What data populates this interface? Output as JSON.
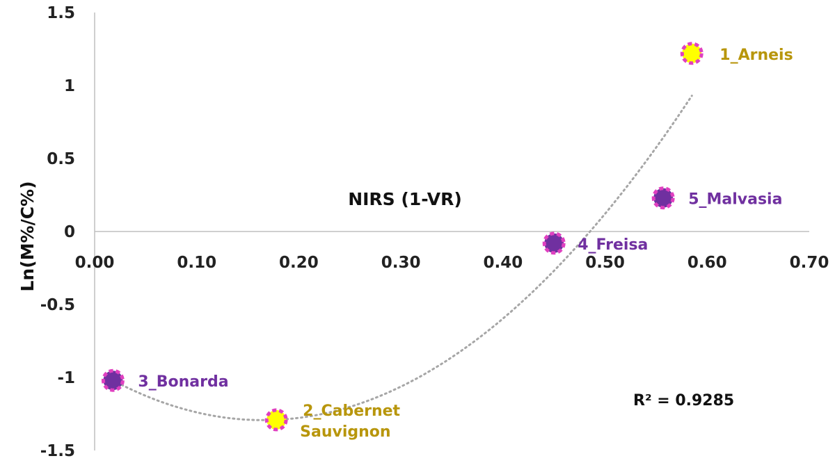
{
  "chart_data": {
    "type": "scatter",
    "xlabel": "NIRS (1-VR)",
    "ylabel": "Ln(M%/C%)",
    "xlim": [
      0,
      0.7
    ],
    "ylim": [
      -1.5,
      1.5
    ],
    "x_ticks": [
      "0.00",
      "0.10",
      "0.20",
      "0.30",
      "0.40",
      "0.50",
      "0.60",
      "0.70"
    ],
    "y_ticks": [
      "1.5",
      "1",
      "0.5",
      "0",
      "-0.5",
      "-1",
      "-1.5"
    ],
    "grid": false,
    "points": [
      {
        "label": "1_Arneis",
        "x": 0.585,
        "y": 1.22,
        "color": "#ffff00"
      },
      {
        "label": "2_Cabernet Sauvignon",
        "label_lines": [
          "2_Cabernet",
          "Sauvignon"
        ],
        "x": 0.178,
        "y": -1.29,
        "color": "#ffff00"
      },
      {
        "label": "3_Bonarda",
        "x": 0.018,
        "y": -1.02,
        "color": "#7030a0"
      },
      {
        "label": "4_Freisa",
        "x": 0.45,
        "y": -0.08,
        "color": "#7030a0"
      },
      {
        "label": "5_Malvasia",
        "x": 0.557,
        "y": 0.23,
        "color": "#7030a0"
      }
    ],
    "trendline": {
      "type": "polynomial",
      "r2_text": "R² = 0.9285",
      "fit": [
        {
          "x": 0.018,
          "y": -1.02
        },
        {
          "x": 0.178,
          "y": -1.29
        },
        {
          "x": 0.585,
          "y": 0.93
        }
      ],
      "color": "#a6a6a6"
    },
    "marker_outline_color": "#e040c0",
    "label_colors": {
      "yellow_points": "#b8960c",
      "purple_points": "#7030a0"
    }
  }
}
